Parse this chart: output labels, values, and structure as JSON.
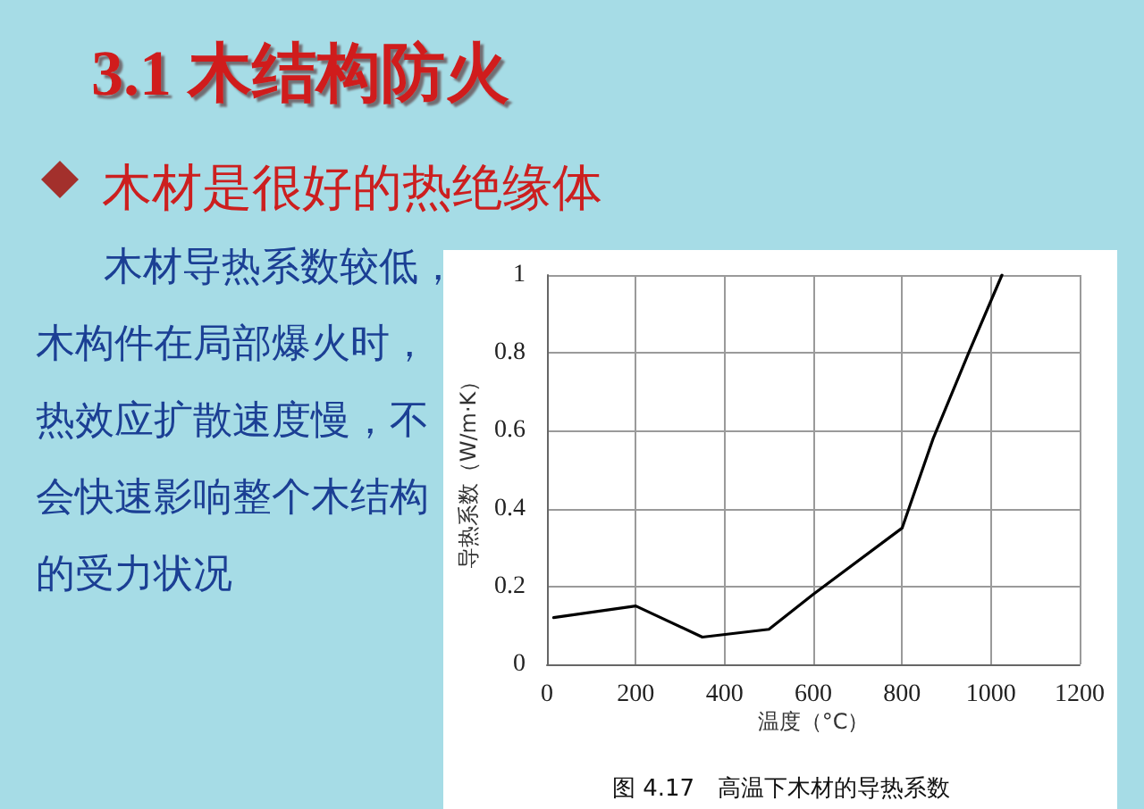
{
  "chart_data": {
    "type": "line",
    "title": "3.1 木结构防火",
    "subtitle": "木材是很好的热绝缘体",
    "annotations": [
      "木材导热系数较低，",
      "木构件在局部爆火时，",
      "热效应扩散速度慢，不",
      "会快速影响整个木结构",
      "的受力状况",
      "图 4.17　高温下木材的导热系数"
    ],
    "xlabel": "温度（°C）",
    "ylabel": "导热系数（W/m·K）",
    "x": [
      15,
      200,
      350,
      500,
      600,
      800,
      870,
      950,
      1025
    ],
    "values": [
      0.12,
      0.15,
      0.07,
      0.09,
      0.18,
      0.35,
      0.58,
      0.8,
      1.0
    ],
    "color": "#000000",
    "xlim": [
      0,
      1200
    ],
    "xticks": [
      0,
      200,
      400,
      600,
      800,
      1000,
      1200
    ],
    "ylim": [
      0,
      1
    ],
    "yticks": [
      0,
      0.2,
      0.4,
      0.6,
      0.8,
      1
    ],
    "grid": true,
    "marker": "none",
    "line_style": "solid"
  }
}
